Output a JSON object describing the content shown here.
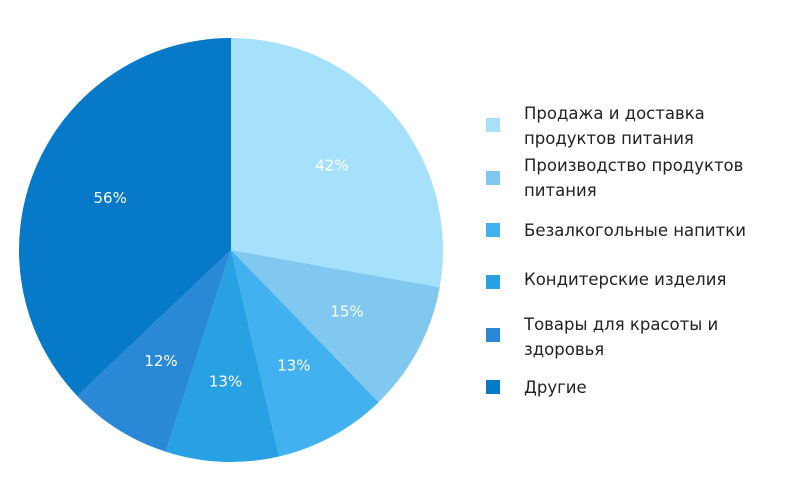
{
  "chart_data": {
    "type": "pie",
    "categories": [
      "Продажа и доставка\nпродуктов питания",
      "Производство продуктов\nпитания",
      "Безалкогольные напитки",
      "Кондитерские изделия",
      "Товары для красоты и\nздоровья",
      "Другие"
    ],
    "values": [
      42,
      15,
      13,
      13,
      12,
      56
    ],
    "labels": [
      "42%",
      "15%",
      "13%",
      "13%",
      "12%",
      "56%"
    ],
    "colors": [
      "#a6e1fb",
      "#80c8f0",
      "#41b1f0",
      "#27a1e1",
      "#2a89d6",
      "#0679c9"
    ],
    "legend": "right",
    "start_angle_deg": 0,
    "direction": "clockwise"
  }
}
